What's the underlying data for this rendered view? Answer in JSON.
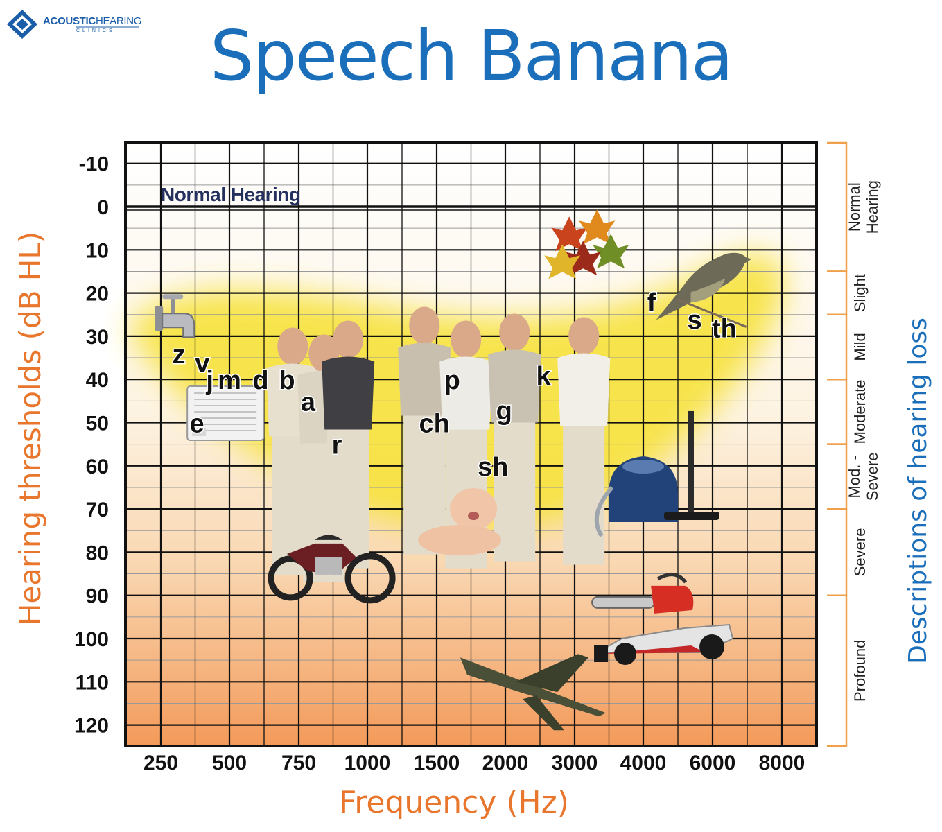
{
  "logo": {
    "brand_bold": "ACOUSTIC",
    "brand_thin": "HEARING",
    "sub": "CLINICS"
  },
  "title": "Speech Banana",
  "colors": {
    "title": "#1b6fba",
    "axis_label_orange": "#e8762c",
    "axis_label_blue": "#1b6fba",
    "bracket": "#f0a04b",
    "banana": "#f7e23a"
  },
  "chart_data": {
    "type": "scatter",
    "title": "Speech Banana",
    "xlabel": "Frequency (Hz)",
    "ylabel": "Hearing thresholds (dB HL)",
    "right_label": "Descriptions of hearing loss",
    "x_ticks": [
      "250",
      "500",
      "750",
      "1000",
      "1500",
      "2000",
      "3000",
      "4000",
      "6000",
      "8000"
    ],
    "y_ticks": [
      -10,
      0,
      10,
      20,
      30,
      40,
      50,
      60,
      70,
      80,
      90,
      100,
      110,
      120
    ],
    "y_tick_labels": [
      "-10",
      "0",
      "10",
      "20",
      "30",
      "40",
      "50",
      "60",
      "70",
      "80",
      "90",
      "100",
      "110",
      "120"
    ],
    "ylim": [
      -15,
      125
    ],
    "y_inverted": true,
    "grid": true,
    "normal_hearing_label": "Normal Hearing",
    "speech_sounds": [
      {
        "label": "z",
        "x": 300,
        "y": 34
      },
      {
        "label": "v",
        "x": 380,
        "y": 36
      },
      {
        "label": "j",
        "x": 410,
        "y": 40
      },
      {
        "label": "m",
        "x": 500,
        "y": 40
      },
      {
        "label": "d",
        "x": 600,
        "y": 40
      },
      {
        "label": "b",
        "x": 700,
        "y": 40
      },
      {
        "label": "e",
        "x": 360,
        "y": 50
      },
      {
        "label": "a",
        "x": 780,
        "y": 45
      },
      {
        "label": "r",
        "x": 880,
        "y": 55
      },
      {
        "label": "ch",
        "x": 1480,
        "y": 50
      },
      {
        "label": "p",
        "x": 1600,
        "y": 40
      },
      {
        "label": "g",
        "x": 1990,
        "y": 47
      },
      {
        "label": "sh",
        "x": 1900,
        "y": 60
      },
      {
        "label": "k",
        "x": 2500,
        "y": 39
      },
      {
        "label": "f",
        "x": 4200,
        "y": 22
      },
      {
        "label": "s",
        "x": 5400,
        "y": 26
      },
      {
        "label": "th",
        "x": 6300,
        "y": 28
      }
    ],
    "sound_sources": [
      {
        "name": "dripping-faucet",
        "x": 280,
        "y": 27
      },
      {
        "name": "air-conditioner",
        "x": 480,
        "y": 48
      },
      {
        "name": "talking-people",
        "x": 1600,
        "y": 50
      },
      {
        "name": "crying-baby",
        "x": 1750,
        "y": 70
      },
      {
        "name": "rustling-leaves",
        "x": 3200,
        "y": 10
      },
      {
        "name": "songbird",
        "x": 5500,
        "y": 15
      },
      {
        "name": "vacuum-cleaner",
        "x": 4000,
        "y": 65
      },
      {
        "name": "motorcycle",
        "x": 850,
        "y": 82
      },
      {
        "name": "chainsaw",
        "x": 4100,
        "y": 91
      },
      {
        "name": "race-car",
        "x": 4500,
        "y": 100
      },
      {
        "name": "jet-plane",
        "x": 2400,
        "y": 110
      }
    ],
    "hearing_loss_categories": [
      {
        "name": "Normal Hearing",
        "from": -15,
        "to": 15
      },
      {
        "name": "Slight",
        "from": 15,
        "to": 25
      },
      {
        "name": "Mild",
        "from": 25,
        "to": 40
      },
      {
        "name": "Moderate",
        "from": 40,
        "to": 55
      },
      {
        "name": "Mod. - Severe",
        "from": 55,
        "to": 70
      },
      {
        "name": "Severe",
        "from": 70,
        "to": 90
      },
      {
        "name": "Profound",
        "from": 90,
        "to": 125
      }
    ]
  }
}
